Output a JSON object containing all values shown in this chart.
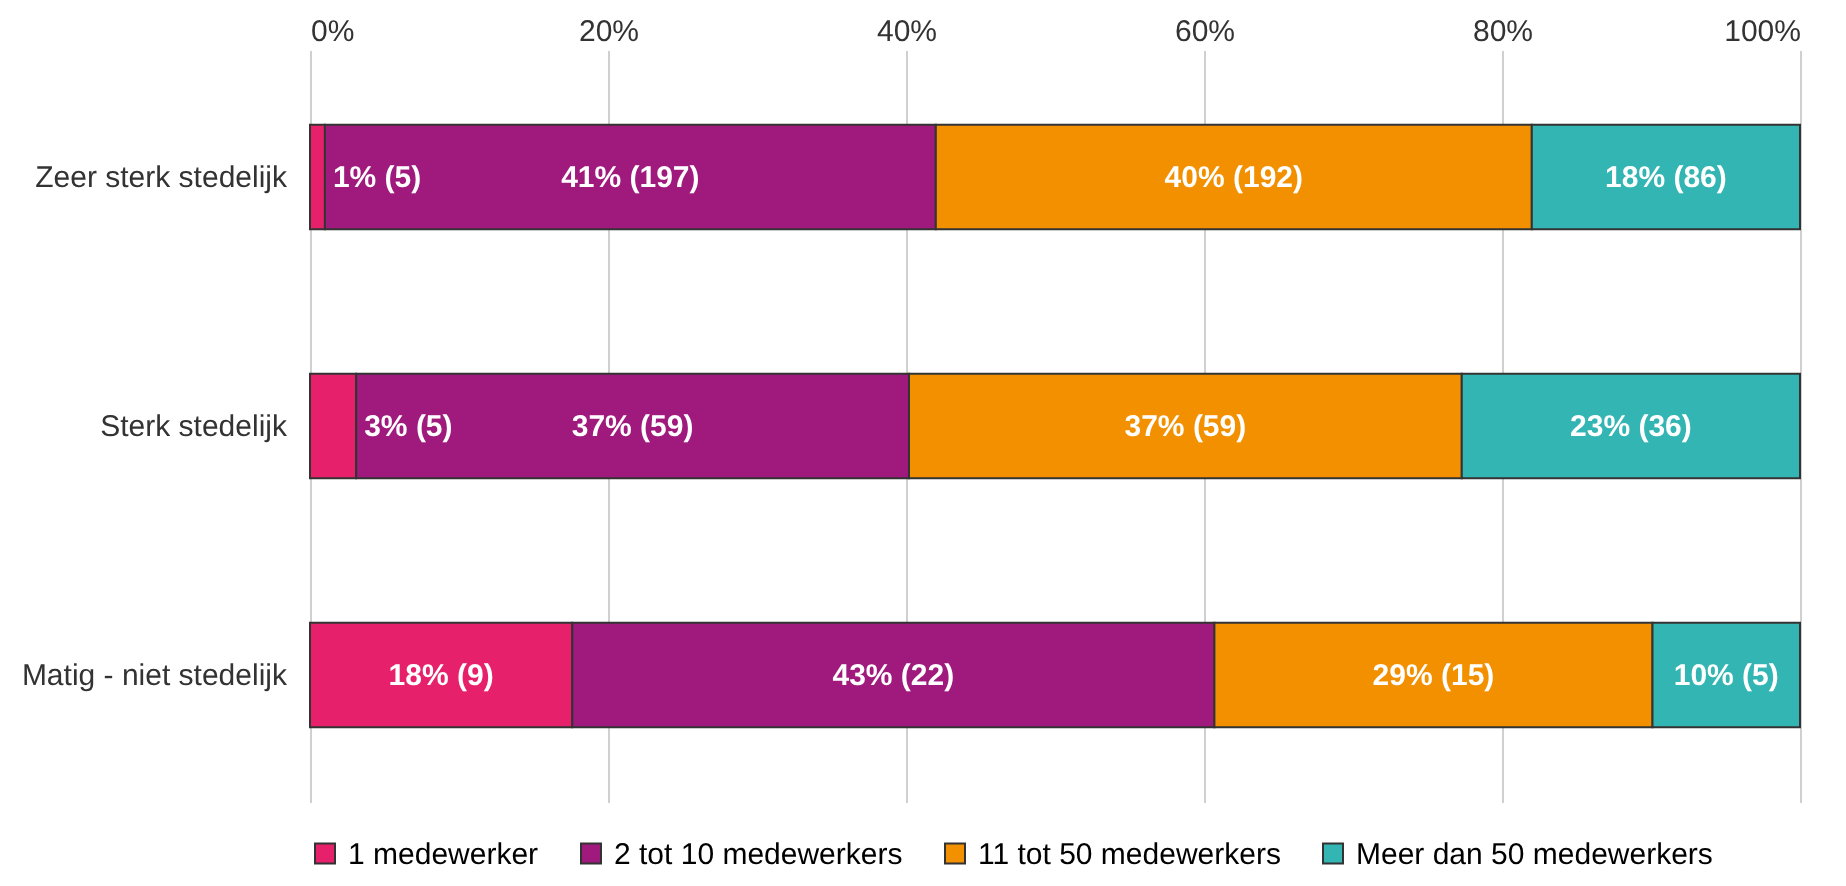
{
  "chart_data": {
    "type": "bar",
    "orientation": "horizontal",
    "stacked": true,
    "categories": [
      "Zeer sterk stedelijk",
      "Sterk stedelijk",
      "Matig - niet stedelijk"
    ],
    "series": [
      {
        "name": "1 medewerker",
        "color": "#e6206a",
        "values": [
          1.0,
          3.1,
          17.6
        ],
        "value_labels": [
          "1% (5)",
          "3% (5)",
          "18% (9)"
        ]
      },
      {
        "name": "2 tot 10 medewerkers",
        "color": "#a0197c",
        "values": [
          41.0,
          37.1,
          43.1
        ],
        "value_labels": [
          "41% (197)",
          "37% (59)",
          "43% (22)"
        ]
      },
      {
        "name": "11 tot 50 medewerkers",
        "color": "#f39000",
        "values": [
          40.0,
          37.1,
          29.4
        ],
        "value_labels": [
          "40% (192)",
          "37% (59)",
          "29% (15)"
        ]
      },
      {
        "name": "Meer dan 50 medewerkers",
        "color": "#33b5b3",
        "values": [
          18.0,
          22.7,
          9.9
        ],
        "value_labels": [
          "18% (86)",
          "23% (36)",
          "10% (5)"
        ]
      }
    ],
    "xlim": [
      0,
      100
    ],
    "xticks": [
      {
        "value": 0,
        "label": "0%"
      },
      {
        "value": 20,
        "label": "20%"
      },
      {
        "value": 40,
        "label": "40%"
      },
      {
        "value": 60,
        "label": "60%"
      },
      {
        "value": 80,
        "label": "80%"
      },
      {
        "value": 100,
        "label": "100%"
      }
    ],
    "grid": "x",
    "legend": "bottom"
  }
}
